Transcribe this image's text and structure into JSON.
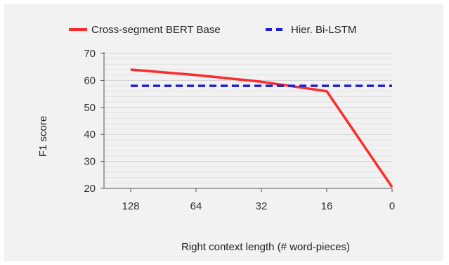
{
  "chart_data": {
    "type": "line",
    "categories": [
      "128",
      "64",
      "32",
      "16",
      "0"
    ],
    "series": [
      {
        "name": "Cross-segment BERT Base",
        "values": [
          64,
          62,
          59.5,
          56,
          20.5
        ],
        "color": "#ff2a2a",
        "style": "solid"
      },
      {
        "name": "Hier. Bi-LSTM",
        "values": [
          58,
          58,
          58,
          58,
          58
        ],
        "color": "#1f1fd6",
        "style": "dashed"
      }
    ],
    "title": "",
    "xlabel": "Right context length (# word-pieces)",
    "ylabel": "F1 score",
    "ylim": [
      20,
      70
    ],
    "yticks": [
      20,
      30,
      40,
      50,
      60,
      70
    ],
    "grid": true,
    "legend_position": "top"
  }
}
